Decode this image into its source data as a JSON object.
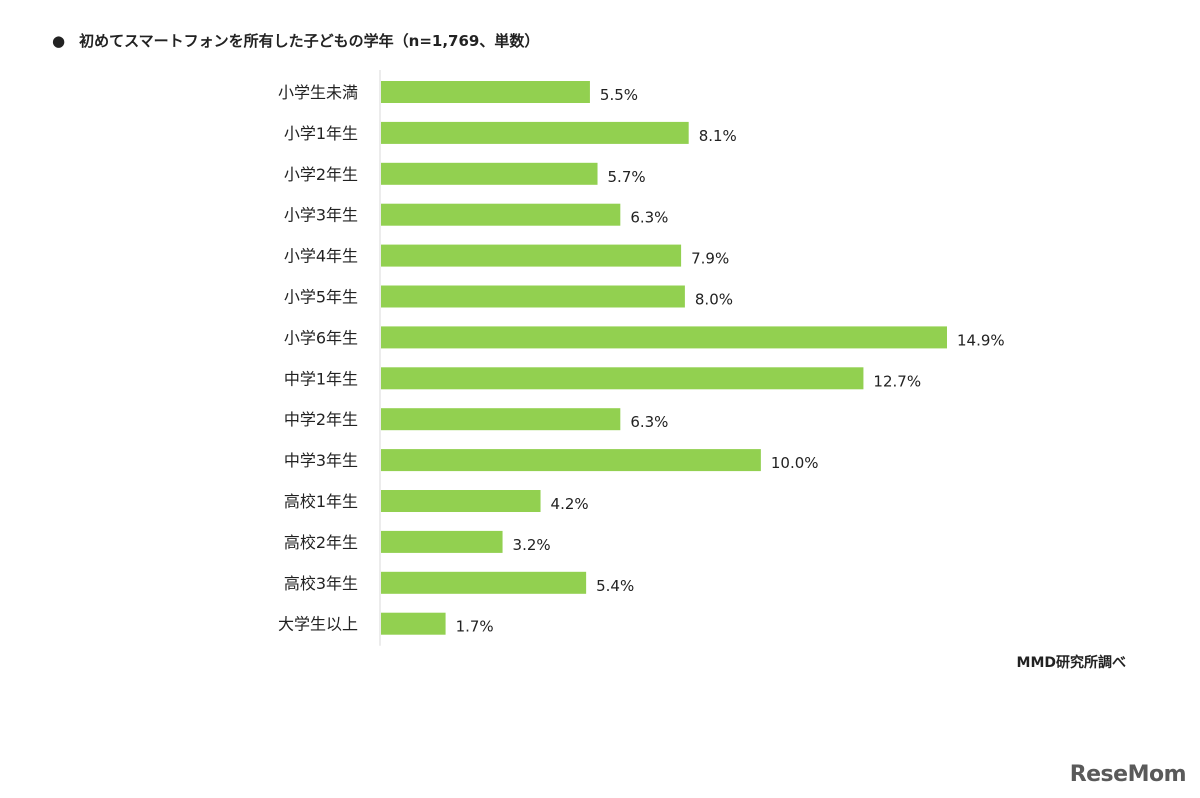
{
  "title": "初めてスマートフォンを所有した子どもの学年（n=1,769、単数）",
  "title_bullet": "●",
  "source": "MMD研究所調べ",
  "logo_text": "ReseMom",
  "colors": {
    "bar": "#92d050",
    "axis": "#d9d9d9",
    "text": "#222222"
  },
  "chart_data": {
    "type": "bar",
    "orientation": "horizontal",
    "title": "初めてスマートフォンを所有した子どもの学年（n=1,769、単数）",
    "xlabel": "",
    "ylabel": "",
    "unit": "%",
    "xlim": [
      0,
      16
    ],
    "grid": false,
    "legend": "none",
    "categories": [
      "小学生未満",
      "小学1年生",
      "小学2年生",
      "小学3年生",
      "小学4年生",
      "小学5年生",
      "小学6年生",
      "中学1年生",
      "中学2年生",
      "中学3年生",
      "高校1年生",
      "高校2年生",
      "高校3年生",
      "大学生以上"
    ],
    "values": [
      5.5,
      8.1,
      5.7,
      6.3,
      7.9,
      8.0,
      14.9,
      12.7,
      6.3,
      10.0,
      4.2,
      3.2,
      5.4,
      1.7
    ],
    "value_labels": [
      "5.5%",
      "8.1%",
      "5.7%",
      "6.3%",
      "7.9%",
      "8.0%",
      "14.9%",
      "12.7%",
      "6.3%",
      "10.0%",
      "4.2%",
      "3.2%",
      "5.4%",
      "1.7%"
    ]
  }
}
